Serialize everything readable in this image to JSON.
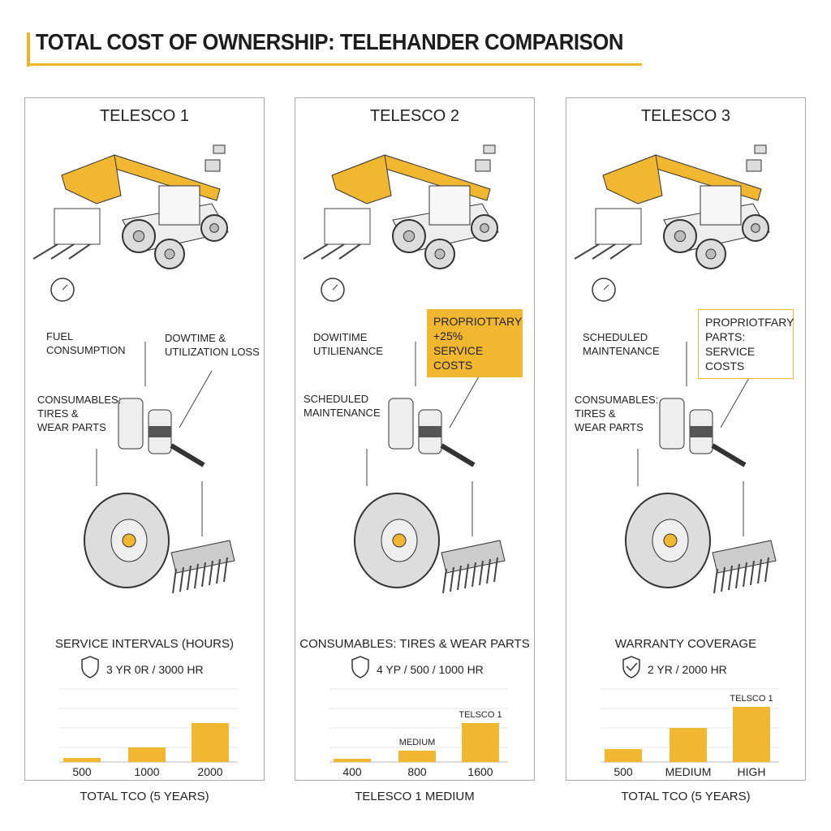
{
  "header": {
    "title": "TOTAL COST OF OWNERSHIP: TELEHANDER COMPARISON"
  },
  "panels": [
    {
      "title": "TELESCO 1",
      "labels": [
        "FUEL\nCONSUMPTION",
        "DOWTIME &\nUTILIZATION LOSS",
        "CONSUMABLES:\nTIRES &\nWEAR PARTS"
      ],
      "section": "SERVICE INTERVALS (HOURS)",
      "spec": "3 YR 0R / 3000 HR",
      "spec_icon": "shield",
      "bar_labels": [
        "500",
        "1000",
        "2000"
      ],
      "bar_top_labels": [
        null,
        null,
        null
      ],
      "footer": "TOTAL TCO (5 YEARS)"
    },
    {
      "title": "TELESCO 2",
      "labels": [
        "DOWITIME\nUTILIENANCE",
        "SCHEDULED\nMAINTENANCE"
      ],
      "callout": "PROPRIOTTARY\n+25%\nSERVICE COSTS",
      "callout_style": "filled",
      "section": "CONSUMABLES: TIRES & WEAR PARTS",
      "spec": "4 YP / 500 / 1000 HR",
      "spec_icon": "shield",
      "bar_labels": [
        "400",
        "800",
        "1600"
      ],
      "bar_top_labels": [
        null,
        "MEDIUM",
        "TELSCO 1"
      ],
      "footer": "TELESCO 1  MEDIUM"
    },
    {
      "title": "TELESCO 3",
      "labels": [
        "SCHEDULED\nMAINTENANCE",
        "CONSUMABLES:\nTIRES &\nWEAR PARTS"
      ],
      "callout": "PROPRIOTFARY\nPARTS:\nSERVICE COSTS",
      "callout_style": "outlined",
      "section": "WARRANTY COVERAGE",
      "spec": "2 YR / 2000 HR",
      "spec_icon": "shield-check",
      "bar_labels": [
        "500",
        "MEDIUM",
        "HIGH"
      ],
      "bar_top_labels": [
        null,
        null,
        "TELSCO 1"
      ],
      "footer": "TOTAL TCO (5 YEARS)"
    }
  ]
}
